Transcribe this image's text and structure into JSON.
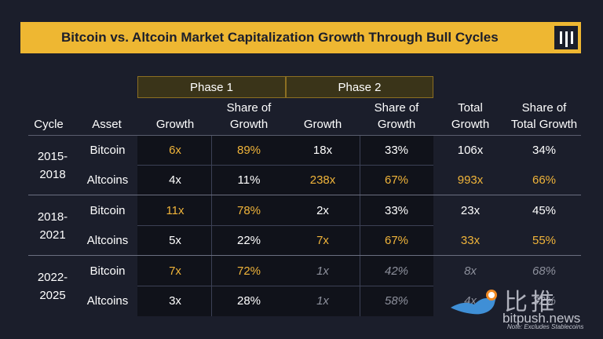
{
  "title": "Bitcoin vs. Altcoin Market Capitalization Growth Through Bull Cycles",
  "logo_icon": "pantera-logo-icon",
  "phases": [
    "Phase 1",
    "Phase 2"
  ],
  "headers": {
    "cycle": "Cycle",
    "asset": "Asset",
    "p1_growth": "Growth",
    "p1_share_1": "Share of",
    "p1_share_2": "Growth",
    "p2_growth": "Growth",
    "p2_share_1": "Share of",
    "p2_share_2": "Growth",
    "total_1": "Total",
    "total_2": "Growth",
    "total_share_1": "Share of",
    "total_share_2": "Total Growth"
  },
  "cycles": [
    {
      "line1": "2015-",
      "line2": "2018"
    },
    {
      "line1": "2018-",
      "line2": "2021"
    },
    {
      "line1": "2022-",
      "line2": "2025"
    }
  ],
  "rows": [
    {
      "asset": "Bitcoin",
      "p1g": "6x",
      "p1s": "89%",
      "p2g": "18x",
      "p2s": "33%",
      "tg": "106x",
      "ts": "34%"
    },
    {
      "asset": "Altcoins",
      "p1g": "4x",
      "p1s": "11%",
      "p2g": "238x",
      "p2s": "67%",
      "tg": "993x",
      "ts": "66%"
    },
    {
      "asset": "Bitcoin",
      "p1g": "11x",
      "p1s": "78%",
      "p2g": "2x",
      "p2s": "33%",
      "tg": "23x",
      "ts": "45%"
    },
    {
      "asset": "Altcoins",
      "p1g": "5x",
      "p1s": "22%",
      "p2g": "7x",
      "p2s": "67%",
      "tg": "33x",
      "ts": "55%"
    },
    {
      "asset": "Bitcoin",
      "p1g": "7x",
      "p1s": "72%",
      "p2g": "1x",
      "p2s": "42%",
      "tg": "8x",
      "ts": "68%"
    },
    {
      "asset": "Altcoins",
      "p1g": "3x",
      "p1s": "28%",
      "p2g": "1x",
      "p2s": "58%",
      "tg": "4x",
      "ts": "32%"
    }
  ],
  "highlight_color": "#f0b43a",
  "muted_color": "#8d909c",
  "watermark": {
    "cn": "比推",
    "url": "bitpush.news",
    "icon": "bird-icon"
  },
  "note": "Note: Excludes Stablecoins"
}
